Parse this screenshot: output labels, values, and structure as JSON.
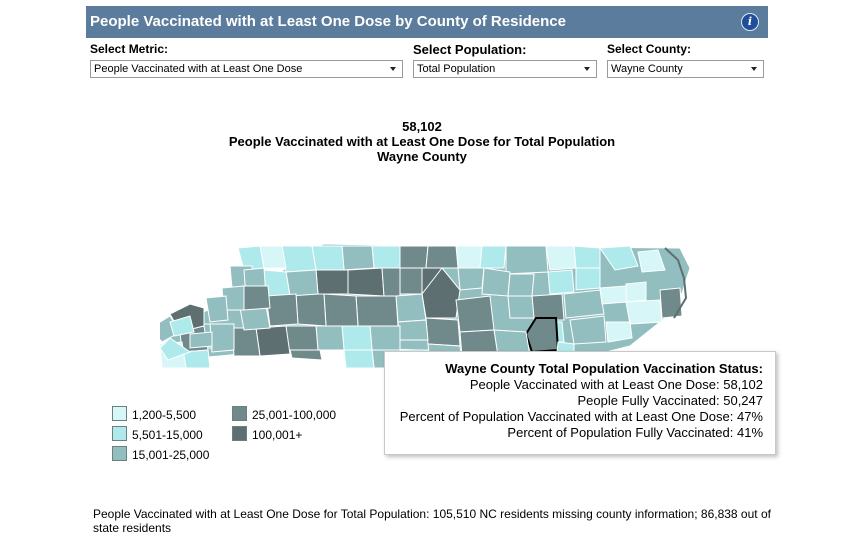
{
  "header": {
    "title": "People Vaccinated with at Least One Dose by County of Residence",
    "info_icon": "info-icon"
  },
  "controls": {
    "metric": {
      "label": "Select Metric:",
      "value": "People Vaccinated with at Least One Dose"
    },
    "population": {
      "label": "Select Population:",
      "value": "Total Population"
    },
    "county": {
      "label": "Select County:",
      "value": "Wayne County"
    }
  },
  "summary": {
    "value": "58,102",
    "line1": "People Vaccinated with at Least One Dose for Total Population",
    "line2": "Wayne County"
  },
  "colors": {
    "bin1": "#d6f6f7",
    "bin2": "#aeeaec",
    "bin3": "#93bec0",
    "bin4": "#708a8b",
    "bin5": "#5d6f70",
    "header": "#5b7c9c",
    "selected_outline": "#000000"
  },
  "legend": [
    {
      "label": "1,200-5,500",
      "color": "#d6f6f7"
    },
    {
      "label": "5,501-15,000",
      "color": "#aeeaec"
    },
    {
      "label": "15,001-25,000",
      "color": "#93bec0"
    },
    {
      "label": "25,001-100,000",
      "color": "#708a8b"
    },
    {
      "label": "100,001+",
      "color": "#5d6f70"
    }
  ],
  "tooltip": {
    "title": "Wayne County Total Population Vaccination Status:",
    "line1": "People Vaccinated with at Least One Dose: 58,102",
    "line2": "People Fully Vaccinated: 50,247",
    "line3": "Percent of Population Vaccinated with at Least One Dose: 47%",
    "line4": "Percent of Population Fully Vaccinated: 41%"
  },
  "footnote": "People Vaccinated with at Least One Dose for Total Population:  105,510 NC residents missing county information; 86,838 out of state residents"
}
